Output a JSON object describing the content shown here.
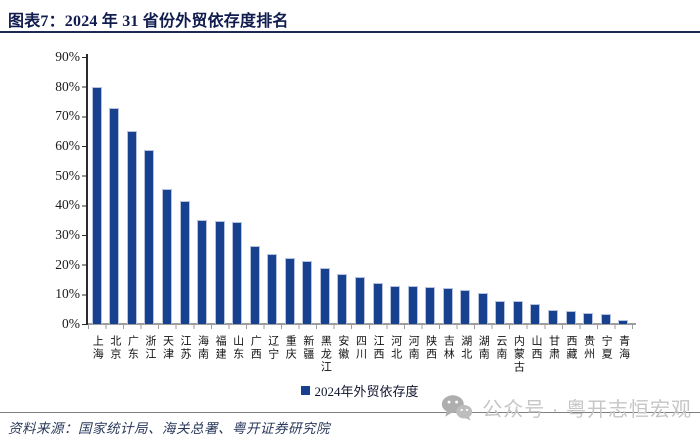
{
  "header": {
    "title": "图表7：2024 年 31 省份外贸依存度排名"
  },
  "chart_data": {
    "type": "bar",
    "title": "2024 年 31 省份外贸依存度排名",
    "categories": [
      "上海",
      "北京",
      "广东",
      "浙江",
      "天津",
      "江苏",
      "海南",
      "福建",
      "山东",
      "广西",
      "辽宁",
      "重庆",
      "新疆",
      "黑龙江",
      "安徽",
      "四川",
      "江西",
      "河北",
      "河南",
      "陕西",
      "吉林",
      "湖北",
      "湖南",
      "云南",
      "内蒙古",
      "山西",
      "甘肃",
      "西藏",
      "贵州",
      "宁夏",
      "青海"
    ],
    "values": [
      79.4,
      72.6,
      64.6,
      58.4,
      45.2,
      41.1,
      34.8,
      34.4,
      34.0,
      26.1,
      23.3,
      21.8,
      20.8,
      18.4,
      16.7,
      15.6,
      13.4,
      12.5,
      12.4,
      12.2,
      11.7,
      11.2,
      10.0,
      7.6,
      7.5,
      6.3,
      4.4,
      4.2,
      3.3,
      3.2,
      1.0
    ],
    "unit": "%",
    "xlabel": "",
    "ylabel": "",
    "ylim": [
      0,
      90
    ],
    "yticks": [
      "0%",
      "10%",
      "20%",
      "30%",
      "40%",
      "50%",
      "60%",
      "70%",
      "80%",
      "90%"
    ],
    "grid": false,
    "legend_position": "bottom",
    "legend": [
      "2024年外贸依存度"
    ],
    "bar_color": "#17408f",
    "bar_border_color": "#b7c3de"
  },
  "legend": {
    "label": "2024年外贸依存度"
  },
  "footer": {
    "source": "资料来源：国家统计局、海关总署、粤开证券研究院",
    "watermark": "公众号 · 粤开志恒宏观"
  }
}
